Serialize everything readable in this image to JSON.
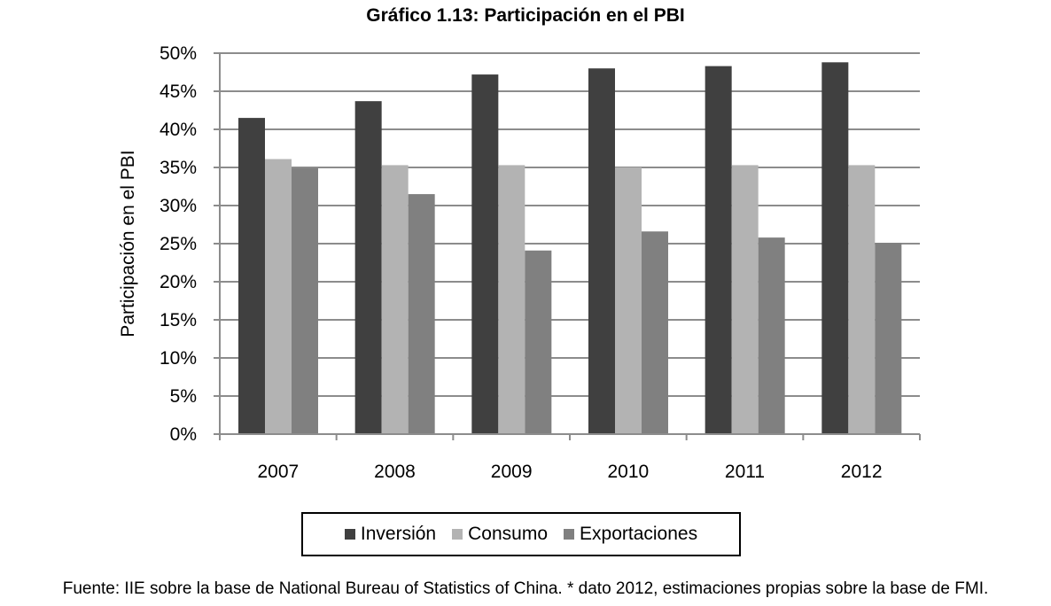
{
  "chart_data": {
    "type": "bar",
    "title": "Gráfico 1.13: Participación en el PBI",
    "ylabel": "Participación en el PBI",
    "xlabel": "",
    "categories": [
      "2007",
      "2008",
      "2009",
      "2010",
      "2011",
      "2012"
    ],
    "series": [
      {
        "name": "Inversión",
        "color": "#404040",
        "values": [
          41.5,
          43.7,
          47.2,
          48.0,
          48.3,
          48.8
        ]
      },
      {
        "name": "Consumo",
        "color": "#b3b3b3",
        "values": [
          36.1,
          35.3,
          35.3,
          35.0,
          35.3,
          35.3
        ]
      },
      {
        "name": "Exportaciones",
        "color": "#808080",
        "values": [
          34.9,
          31.5,
          24.1,
          26.6,
          25.8,
          25.1
        ]
      }
    ],
    "ylim": [
      0,
      50
    ],
    "yticks": [
      "0%",
      "5%",
      "10%",
      "15%",
      "20%",
      "25%",
      "30%",
      "35%",
      "40%",
      "45%",
      "50%"
    ],
    "grid": true,
    "legend": "bottom"
  },
  "footer": {
    "source": "Fuente: IIE sobre la base de National Bureau of Statistics of China. * dato 2012, estimaciones propias sobre la base de FMI."
  }
}
